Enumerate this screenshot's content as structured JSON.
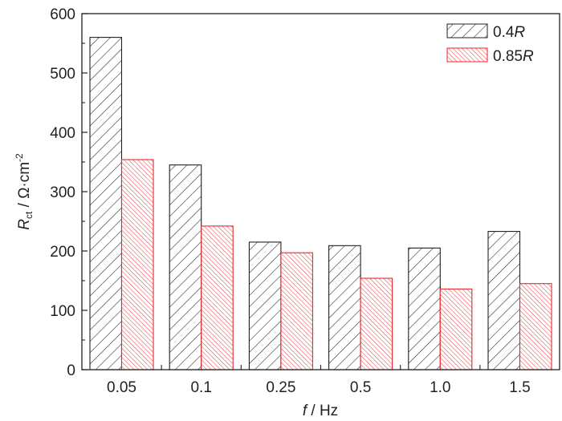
{
  "chart_data": {
    "type": "bar",
    "title": "",
    "categories": [
      "0.05",
      "0.1",
      "0.25",
      "0.5",
      "1.0",
      "1.5"
    ],
    "series": [
      {
        "name": "0.4R",
        "values": [
          560,
          345,
          215,
          209,
          205,
          233
        ],
        "color": "#231f20",
        "pattern": "hatch-backslash"
      },
      {
        "name": "0.85R",
        "values": [
          354,
          242,
          197,
          154,
          136,
          145
        ],
        "color": "#e8262a",
        "pattern": "hatch-slash-dense"
      }
    ],
    "xlabel": "f / Hz",
    "ylabel": "R_ct / Ω·cm^-2",
    "ylim": [
      0,
      600
    ],
    "yticks": [
      0,
      100,
      200,
      300,
      400,
      500,
      600
    ],
    "grid": false,
    "legend_position": "top-right"
  },
  "axes": {
    "xlabel_italic": "f",
    "xlabel_rest": " / Hz",
    "ylabel_main": "R",
    "ylabel_sub": "ct",
    "ylabel_rest": " / Ω·cm",
    "ylabel_sup": "-2"
  },
  "legend": {
    "items": [
      {
        "prefix": "0.4",
        "italic": "R"
      },
      {
        "prefix": "0.85",
        "italic": "R"
      }
    ]
  }
}
